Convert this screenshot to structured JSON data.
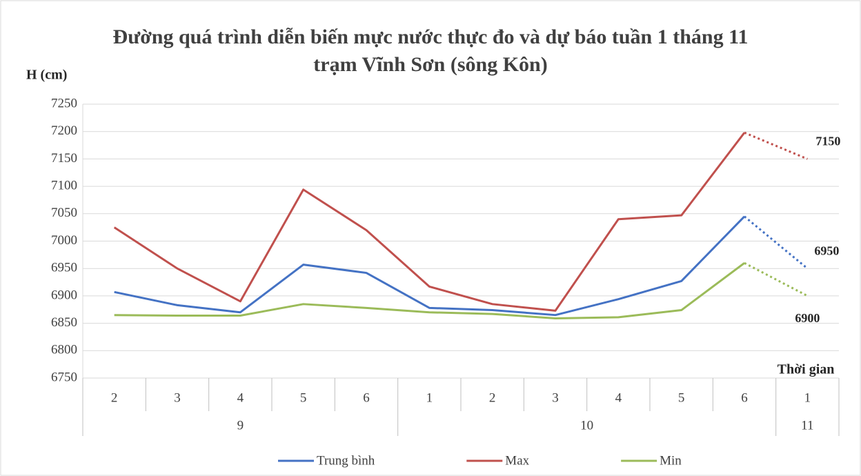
{
  "chart_data": {
    "type": "line",
    "title": "Đường quá trình diễn biến mực nước thực đo và dự báo tuần 1 tháng 11 trạm Vĩnh Sơn (sông Kôn)",
    "y_label": "H (cm)",
    "x_label": "Thời gian",
    "categories": [
      "2",
      "3",
      "4",
      "5",
      "6",
      "1",
      "2",
      "3",
      "4",
      "5",
      "6",
      "1"
    ],
    "category_groups": [
      "9",
      "9",
      "9",
      "9",
      "9",
      "10",
      "10",
      "10",
      "10",
      "10",
      "10",
      "11"
    ],
    "series": [
      {
        "name": "Trung bình",
        "color": "#4472c4",
        "values": [
          6907,
          6883,
          6870,
          6957,
          6942,
          6878,
          6874,
          6865,
          6894,
          6927,
          7045,
          6950
        ]
      },
      {
        "name": "Max",
        "color": "#c0504d",
        "values": [
          7025,
          6950,
          6890,
          7094,
          7020,
          6917,
          6885,
          6873,
          7040,
          7047,
          7198,
          7150
        ]
      },
      {
        "name": "Min",
        "color": "#9bbb59",
        "values": [
          6865,
          6864,
          6864,
          6885,
          6878,
          6870,
          6867,
          6859,
          6861,
          6874,
          6960,
          6900
        ]
      }
    ],
    "dotted_last_segment": true,
    "label_last_point": true,
    "ylim": [
      6750,
      7250
    ],
    "yticks": [
      6750,
      6800,
      6850,
      6900,
      6950,
      7000,
      7050,
      7100,
      7150,
      7200,
      7250
    ],
    "grid": true,
    "legend": "bottom"
  }
}
